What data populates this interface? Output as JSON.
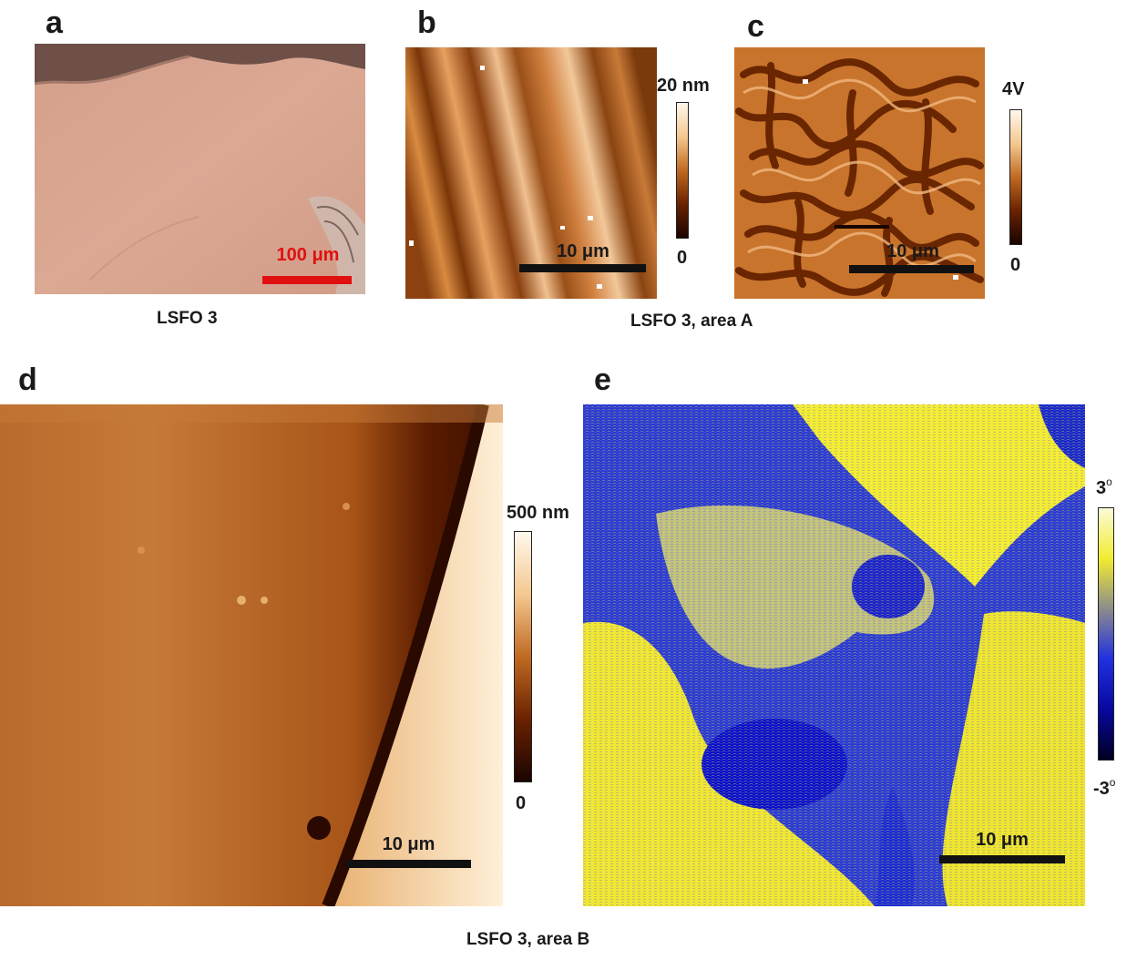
{
  "panels": {
    "a": {
      "letter": "a",
      "scale_bar": "100 μm",
      "caption": "LSFO 3"
    },
    "b": {
      "letter": "b",
      "scale_bar": "10 μm",
      "colorbar_max": "20 nm",
      "colorbar_min": "0"
    },
    "c": {
      "letter": "c",
      "scale_bar": "10 μm",
      "colorbar_max": "4V",
      "colorbar_min": "0"
    },
    "bc_caption": "LSFO 3, area A",
    "d": {
      "letter": "d",
      "scale_bar": "10 μm",
      "colorbar_max": "500 nm",
      "colorbar_min": "0"
    },
    "e": {
      "letter": "e",
      "scale_bar": "10 μm",
      "colorbar_max": "3",
      "colorbar_min": "-3",
      "degree_symbol": "o"
    },
    "de_caption": "LSFO 3, area B"
  },
  "colors": {
    "optical_bg": "#d9a08a",
    "afm_brown_dark": "#2a0c00",
    "afm_brown_mid": "#b0601e",
    "afm_brown_light": "#fbe6c8",
    "phase_blue": "#0a10c8",
    "phase_yellow": "#f2e81e",
    "scale_bar_red": "#e01010",
    "scale_bar_black": "#111111"
  }
}
